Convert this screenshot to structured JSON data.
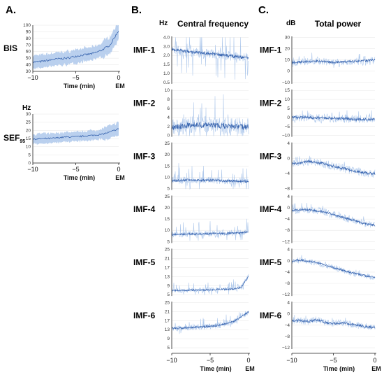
{
  "panels": {
    "A": {
      "letter": "A.",
      "rows": [
        {
          "label": "BIS",
          "unit": "",
          "yticks": [
            30,
            40,
            50,
            60,
            70,
            80,
            90,
            100
          ],
          "ylim": [
            30,
            100
          ],
          "mean_x": [
            -10,
            -9,
            -8,
            -7,
            -6,
            -5,
            -4,
            -3,
            -2,
            -1,
            0
          ],
          "mean_y": [
            44,
            45,
            47,
            49,
            50,
            53,
            55,
            57,
            62,
            70,
            92
          ],
          "band": 10
        },
        {
          "label": "SEF95",
          "label_main": "SEF",
          "label_sub": "95",
          "unit": "Hz",
          "yticks": [
            0,
            5,
            10,
            15,
            20,
            25,
            30
          ],
          "ylim": [
            0,
            30
          ],
          "mean_x": [
            -10,
            -9,
            -8,
            -7,
            -6,
            -5,
            -4,
            -3,
            -2,
            -1,
            0
          ],
          "mean_y": [
            14.5,
            15,
            15,
            15.5,
            16,
            16,
            16.5,
            17,
            17.5,
            19,
            21
          ],
          "band": 3
        }
      ],
      "xlabel": "Time (min)",
      "xticks": [
        "−10",
        "−5",
        "0"
      ],
      "em_label": "EM"
    },
    "B": {
      "letter": "B.",
      "title": "Central frequency",
      "unit": "Hz",
      "xlabel": "Time (min)",
      "xticks": [
        "−10",
        "−5",
        "0"
      ],
      "em_label": "EM",
      "rows": [
        {
          "label": "IMF-1",
          "yticks": [
            "0.5",
            "1.0",
            "1.5",
            "2.0",
            "3.0",
            "4.0"
          ],
          "levels": [
            0.72,
            0.7,
            0.68,
            0.66,
            0.65,
            0.64,
            0.62,
            0.6,
            0.58,
            0.56,
            0.55
          ],
          "noise": 0.08,
          "spikes": 0.9
        },
        {
          "label": "IMF-2",
          "yticks": [
            "0",
            "2",
            "4",
            "6",
            "8",
            "10"
          ],
          "levels": [
            0.2,
            0.22,
            0.24,
            0.26,
            0.25,
            0.25,
            0.24,
            0.23,
            0.22,
            0.22,
            0.21
          ],
          "noise": 0.15,
          "spikes": 0.75
        },
        {
          "label": "IMF-3",
          "yticks": [
            "5",
            "10",
            "15",
            "20",
            "25"
          ],
          "levels": [
            0.2,
            0.2,
            0.21,
            0.21,
            0.2,
            0.2,
            0.2,
            0.19,
            0.19,
            0.18,
            0.18
          ],
          "noise": 0.06,
          "spikes": 0.4
        },
        {
          "label": "IMF-4",
          "yticks": [
            "5",
            "10",
            "15",
            "20",
            "25"
          ],
          "levels": [
            0.18,
            0.18,
            0.19,
            0.19,
            0.19,
            0.2,
            0.2,
            0.2,
            0.21,
            0.22,
            0.23
          ],
          "noise": 0.05,
          "spikes": 0.3
        },
        {
          "label": "IMF-5",
          "yticks": [
            "5",
            "9",
            "13",
            "17",
            "21",
            "25"
          ],
          "levels": [
            0.12,
            0.12,
            0.12,
            0.13,
            0.13,
            0.13,
            0.14,
            0.14,
            0.15,
            0.18,
            0.42
          ],
          "noise": 0.04,
          "spikes": 0.2
        },
        {
          "label": "IMF-6",
          "yticks": [
            "5",
            "9",
            "13",
            "17",
            "21",
            "25"
          ],
          "levels": [
            0.44,
            0.44,
            0.45,
            0.46,
            0.47,
            0.48,
            0.5,
            0.53,
            0.58,
            0.68,
            0.78
          ],
          "noise": 0.05,
          "spikes": 0.2
        }
      ]
    },
    "C": {
      "letter": "C.",
      "title": "Total power",
      "unit": "dB",
      "xlabel": "Time (min)",
      "xticks": [
        "−10",
        "−5",
        "0"
      ],
      "em_label": "EM",
      "rows": [
        {
          "label": "IMF-1",
          "yticks": [
            "−10",
            "0",
            "10",
            "20",
            "30"
          ],
          "levels": [
            0.45,
            0.46,
            0.47,
            0.48,
            0.46,
            0.45,
            0.46,
            0.47,
            0.48,
            0.49,
            0.52
          ],
          "noise": 0.06,
          "spikes": 0.4
        },
        {
          "label": "IMF-2",
          "yticks": [
            "−10",
            "−5",
            "0",
            "5",
            "10",
            "15"
          ],
          "levels": [
            0.42,
            0.41,
            0.41,
            0.4,
            0.4,
            0.39,
            0.39,
            0.38,
            0.37,
            0.37,
            0.36
          ],
          "noise": 0.07,
          "spikes": 0.4
        },
        {
          "label": "IMF-3",
          "yticks": [
            "−8",
            "−4",
            "0",
            "4"
          ],
          "levels": [
            0.55,
            0.57,
            0.6,
            0.58,
            0.55,
            0.5,
            0.46,
            0.42,
            0.39,
            0.36,
            0.34
          ],
          "noise": 0.07,
          "spikes": 0.3
        },
        {
          "label": "IMF-4",
          "yticks": [
            "−12",
            "−8",
            "−4",
            "0",
            "4"
          ],
          "levels": [
            0.68,
            0.7,
            0.7,
            0.68,
            0.65,
            0.6,
            0.55,
            0.5,
            0.45,
            0.4,
            0.37
          ],
          "noise": 0.06,
          "spikes": 0.3
        },
        {
          "label": "IMF-5",
          "yticks": [
            "−12",
            "−8",
            "−4",
            "0",
            "4"
          ],
          "levels": [
            0.74,
            0.76,
            0.74,
            0.7,
            0.66,
            0.6,
            0.55,
            0.5,
            0.46,
            0.42,
            0.4
          ],
          "noise": 0.05,
          "spikes": 0.25
        },
        {
          "label": "IMF-6",
          "yticks": [
            "−12",
            "−8",
            "−4",
            "0",
            "4"
          ],
          "levels": [
            0.6,
            0.6,
            0.58,
            0.62,
            0.56,
            0.54,
            0.55,
            0.53,
            0.5,
            0.47,
            0.45
          ],
          "noise": 0.06,
          "spikes": 0.25
        }
      ]
    }
  },
  "colors": {
    "line": "#3a66b0",
    "band": "#a9c4ea",
    "axis": "#222222",
    "grid": "#e6e6e6"
  }
}
